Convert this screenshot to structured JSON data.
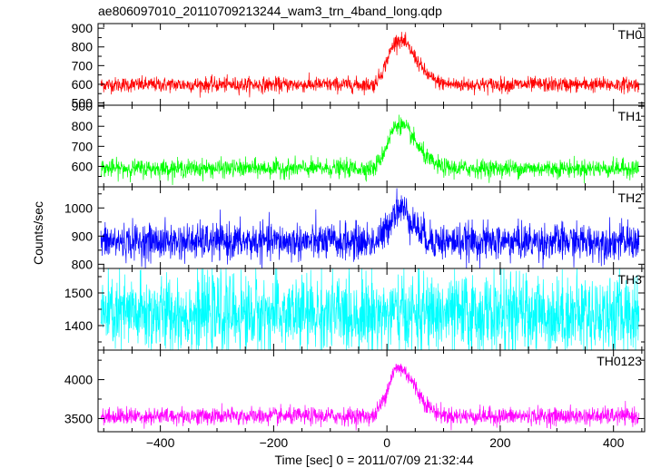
{
  "chart_data": {
    "type": "line",
    "title": "ae806097010_20110709213244_wam3_trn_4band_long.qdp",
    "xlabel": "Time [sec] 0 = 2011/07/09 21:32:44",
    "ylabel": "Counts/sec",
    "xlim": [
      -510,
      455
    ],
    "xticks": [
      -400,
      -200,
      0,
      200,
      400
    ],
    "x_start": -505,
    "x_end": 445,
    "bin_width": 0.5,
    "grid": false,
    "panels": [
      {
        "name": "TH0",
        "color": "#ff0000",
        "ylim": [
          488,
          925
        ],
        "yticks": [
          500,
          600,
          700,
          800,
          900
        ],
        "baseline": 598,
        "noise": 20,
        "peak": 240,
        "peak_time": 20,
        "peak_width": 30
      },
      {
        "name": "TH1",
        "color": "#00ff00",
        "ylim": [
          498,
          905
        ],
        "yticks": [
          600,
          700,
          800,
          900
        ],
        "baseline": 590,
        "noise": 22,
        "peak": 220,
        "peak_time": 20,
        "peak_width": 30
      },
      {
        "name": "TH2",
        "color": "#0000ff",
        "ylim": [
          785,
          1075
        ],
        "yticks": [
          800,
          900,
          1000
        ],
        "baseline": 880,
        "noise": 32,
        "peak": 120,
        "peak_time": 20,
        "peak_width": 25
      },
      {
        "name": "TH3",
        "color": "#00ffff",
        "ylim": [
          1325,
          1575
        ],
        "yticks": [
          1400,
          1500
        ],
        "baseline": 1435,
        "noise": 60,
        "peak": 0,
        "peak_time": 20,
        "peak_width": 25
      },
      {
        "name": "TH0123",
        "color": "#ff00ff",
        "ylim": [
          3330,
          4380
        ],
        "yticks": [
          3500,
          4000
        ],
        "baseline": 3530,
        "noise": 55,
        "peak": 620,
        "peak_time": 20,
        "peak_width": 30
      }
    ]
  }
}
